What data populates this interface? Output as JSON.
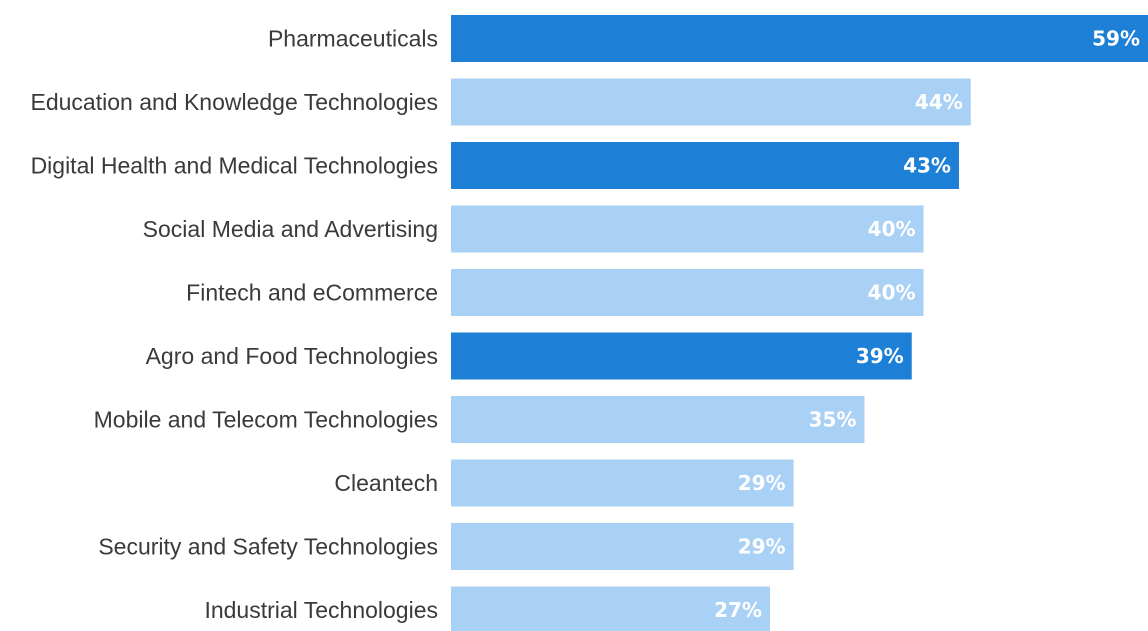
{
  "chart_data": {
    "type": "bar",
    "orientation": "horizontal",
    "categories": [
      "Pharmaceuticals",
      "Education and Knowledge Technologies",
      "Digital Health and Medical Technologies",
      "Social Media and Advertising",
      "Fintech and eCommerce",
      "Agro and Food Technologies",
      "Mobile and Telecom Technologies",
      "Cleantech",
      "Security and Safety Technologies",
      "Industrial Technologies"
    ],
    "values": [
      59,
      44,
      43,
      40,
      40,
      39,
      35,
      29,
      29,
      27
    ],
    "value_labels": [
      "59%",
      "44%",
      "43%",
      "40%",
      "40%",
      "39%",
      "35%",
      "29%",
      "29%",
      "27%"
    ],
    "highlighted": [
      true,
      false,
      true,
      false,
      false,
      true,
      false,
      false,
      false,
      false
    ],
    "xlim": [
      0,
      59
    ],
    "grid": false,
    "legend": "none",
    "colors": {
      "highlight": "#1e7fd6",
      "normal": "#a9d0f5",
      "label": "#3a3a3a",
      "value_text": "#ffffff"
    }
  }
}
